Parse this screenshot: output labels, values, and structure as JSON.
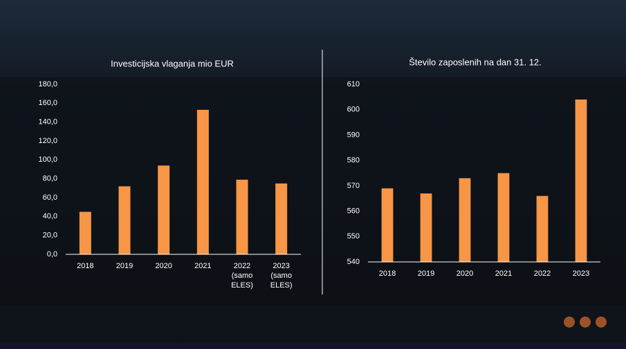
{
  "chart_data": [
    {
      "type": "bar",
      "title": "Investicijska vlaganja mio EUR",
      "categories": [
        "2018",
        "2019",
        "2020",
        "2021",
        "2022 (samo ELES)",
        "2023 (samo ELES)"
      ],
      "values": [
        45,
        72,
        94,
        153,
        79,
        75
      ],
      "color": "#f79646",
      "ylim": [
        0,
        180
      ],
      "yticks": [
        {
          "value": 0,
          "label": "0,0"
        },
        {
          "value": 20,
          "label": "20,0"
        },
        {
          "value": 40,
          "label": "40,0"
        },
        {
          "value": 60,
          "label": "60,0"
        },
        {
          "value": 80,
          "label": "80,0"
        },
        {
          "value": 100,
          "label": "100,0"
        },
        {
          "value": 120,
          "label": "120,0"
        },
        {
          "value": 140,
          "label": "140,0"
        },
        {
          "value": 160,
          "label": "160,0"
        },
        {
          "value": 180,
          "label": "180,0"
        }
      ]
    },
    {
      "type": "bar",
      "title": "Število zaposlenih na dan 31. 12.",
      "categories": [
        "2018",
        "2019",
        "2020",
        "2021",
        "2022",
        "2023"
      ],
      "values": [
        569,
        567,
        573,
        575,
        566,
        604
      ],
      "color": "#f79646",
      "ylim": [
        540,
        610
      ],
      "yticks": [
        540,
        550,
        560,
        570,
        580,
        590,
        600,
        610
      ]
    }
  ]
}
